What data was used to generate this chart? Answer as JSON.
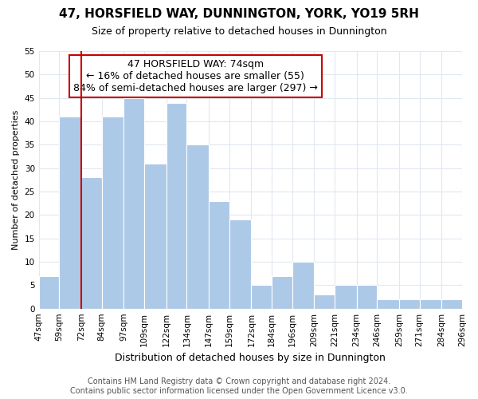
{
  "title": "47, HORSFIELD WAY, DUNNINGTON, YORK, YO19 5RH",
  "subtitle": "Size of property relative to detached houses in Dunnington",
  "xlabel": "Distribution of detached houses by size in Dunnington",
  "ylabel": "Number of detached properties",
  "bin_edges": [
    47,
    59,
    72,
    84,
    97,
    109,
    122,
    134,
    147,
    159,
    172,
    184,
    196,
    209,
    221,
    234,
    246,
    259,
    271,
    284,
    296
  ],
  "bin_labels": [
    "47sqm",
    "59sqm",
    "72sqm",
    "84sqm",
    "97sqm",
    "109sqm",
    "122sqm",
    "134sqm",
    "147sqm",
    "159sqm",
    "172sqm",
    "184sqm",
    "196sqm",
    "209sqm",
    "221sqm",
    "234sqm",
    "246sqm",
    "259sqm",
    "271sqm",
    "284sqm",
    "296sqm"
  ],
  "counts": [
    7,
    41,
    28,
    41,
    45,
    31,
    44,
    35,
    23,
    19,
    5,
    7,
    10,
    3,
    5,
    5,
    2,
    2,
    2,
    2
  ],
  "bar_color": "#adc9e8",
  "bar_edge_color": "#ffffff",
  "highlight_line_color": "#cc0000",
  "annotation_text_line1": "47 HORSFIELD WAY: 74sqm",
  "annotation_text_line2": "← 16% of detached houses are smaller (55)",
  "annotation_text_line3": "84% of semi-detached houses are larger (297) →",
  "annotation_box_facecolor": "#ffffff",
  "annotation_box_edgecolor": "#cc0000",
  "ylim": [
    0,
    55
  ],
  "yticks": [
    0,
    5,
    10,
    15,
    20,
    25,
    30,
    35,
    40,
    45,
    50,
    55
  ],
  "footer_line1": "Contains HM Land Registry data © Crown copyright and database right 2024.",
  "footer_line2": "Contains public sector information licensed under the Open Government Licence v3.0.",
  "background_color": "#ffffff",
  "plot_bg_color": "#ffffff",
  "grid_color": "#e0e8f0",
  "title_fontsize": 11,
  "subtitle_fontsize": 9,
  "ylabel_fontsize": 8,
  "xlabel_fontsize": 9,
  "tick_fontsize": 7.5,
  "annotation_fontsize": 9,
  "footer_fontsize": 7
}
